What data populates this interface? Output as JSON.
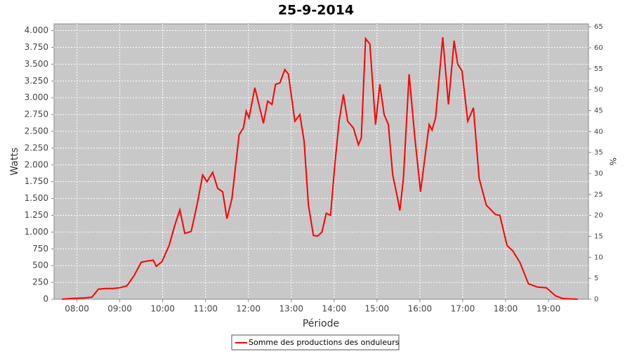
{
  "chart_data": {
    "type": "line",
    "title": "25-9-2014",
    "x_label": "Période",
    "y_label": "Watts",
    "y2_label": "%",
    "x": [
      "07:39",
      "07:51",
      "08:11",
      "08:21",
      "08:30",
      "08:40",
      "08:50",
      "09:00",
      "09:10",
      "09:20",
      "09:30",
      "09:39",
      "09:47",
      "09:51",
      "09:59",
      "10:09",
      "10:17",
      "10:24",
      "10:31",
      "10:40",
      "10:48",
      "10:56",
      "11:02",
      "11:10",
      "11:17",
      "11:24",
      "11:30",
      "11:37",
      "11:47",
      "11:53",
      "11:57",
      "12:01",
      "12:09",
      "12:17",
      "12:21",
      "12:27",
      "12:33",
      "12:38",
      "12:44",
      "12:51",
      "12:56",
      "13:05",
      "13:12",
      "13:18",
      "13:24",
      "13:31",
      "13:37",
      "13:43",
      "13:49",
      "13:55",
      "14:01",
      "14:07",
      "14:13",
      "14:19",
      "14:27",
      "14:34",
      "14:38",
      "14:44",
      "14:50",
      "14:58",
      "15:04",
      "15:10",
      "15:16",
      "15:22",
      "15:28",
      "15:32",
      "15:37",
      "15:45",
      "15:53",
      "16:01",
      "16:07",
      "16:13",
      "16:17",
      "16:22",
      "16:32",
      "16:40",
      "16:48",
      "16:53",
      "16:59",
      "17:07",
      "17:15",
      "17:23",
      "17:33",
      "17:46",
      "17:52",
      "18:02",
      "18:10",
      "18:20",
      "18:32",
      "18:45",
      "18:57",
      "19:10",
      "19:20",
      "19:41"
    ],
    "series": [
      {
        "name": "Somme des productions des onduleurs",
        "color": "#ff0000",
        "values": [
          0,
          10,
          20,
          30,
          150,
          160,
          160,
          170,
          200,
          350,
          550,
          570,
          580,
          490,
          560,
          800,
          1100,
          1330,
          980,
          1010,
          1400,
          1850,
          1750,
          1890,
          1650,
          1600,
          1200,
          1500,
          2450,
          2550,
          2800,
          2700,
          3150,
          2800,
          2620,
          2950,
          2900,
          3200,
          3220,
          3420,
          3350,
          2650,
          2750,
          2350,
          1400,
          950,
          940,
          1000,
          1280,
          1250,
          2000,
          2650,
          3050,
          2650,
          2550,
          2300,
          2400,
          3880,
          3800,
          2600,
          3200,
          2750,
          2600,
          1850,
          1550,
          1320,
          1800,
          3350,
          2400,
          1600,
          2100,
          2600,
          2520,
          2700,
          3900,
          2900,
          3850,
          3500,
          3400,
          2650,
          2850,
          1800,
          1400,
          1260,
          1250,
          800,
          720,
          550,
          230,
          180,
          170,
          50,
          10,
          0
        ]
      }
    ],
    "xlim": [
      "07:28",
      "19:56"
    ],
    "xticks": [
      "08:00",
      "09:00",
      "10:00",
      "11:00",
      "12:00",
      "13:00",
      "14:00",
      "15:00",
      "16:00",
      "17:00",
      "18:00",
      "19:00"
    ],
    "ylim": [
      0,
      4100
    ],
    "yticks": [
      0,
      250,
      500,
      750,
      {
        "value": 1000,
        "label": "1.000"
      },
      {
        "value": 1250,
        "label": "1.250"
      },
      {
        "value": 1500,
        "label": "1.500"
      },
      {
        "value": 1750,
        "label": "1.750"
      },
      {
        "value": 2000,
        "label": "2.000"
      },
      {
        "value": 2250,
        "label": "2.250"
      },
      {
        "value": 2500,
        "label": "2.500"
      },
      {
        "value": 2750,
        "label": "2.750"
      },
      {
        "value": 3000,
        "label": "3.000"
      },
      {
        "value": 3250,
        "label": "3.250"
      },
      {
        "value": 3500,
        "label": "3.500"
      },
      {
        "value": 3750,
        "label": "3.750"
      },
      {
        "value": 4000,
        "label": "4.000"
      }
    ],
    "y2lim": [
      0,
      65.7
    ],
    "y2ticks": [
      0,
      5,
      10,
      15,
      20,
      25,
      30,
      35,
      40,
      45,
      50,
      55,
      60,
      65
    ],
    "grid": true
  }
}
